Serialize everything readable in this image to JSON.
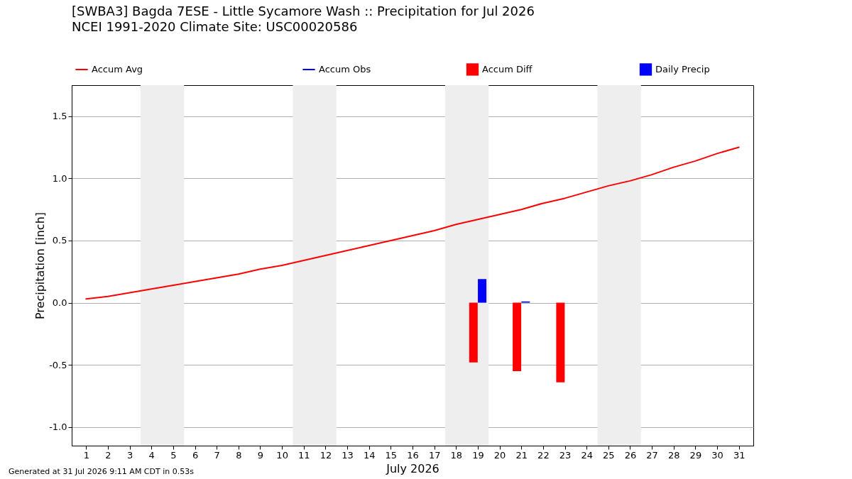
{
  "chart_data": {
    "type": "bar",
    "title": "[SWBA3] Bagda 7ESE - Little Sycamore Wash :: Precipitation for Jul 2026",
    "subtitle": "NCEI 1991-2020 Climate Site: USC00020586",
    "xlabel": "July 2026",
    "ylabel": "Precipitation [inch]",
    "x": [
      1,
      2,
      3,
      4,
      5,
      6,
      7,
      8,
      9,
      10,
      11,
      12,
      13,
      14,
      15,
      16,
      17,
      18,
      19,
      20,
      21,
      22,
      23,
      24,
      25,
      26,
      27,
      28,
      29,
      30,
      31
    ],
    "series": [
      {
        "name": "Accum Avg",
        "type": "line",
        "color": "#ff0000",
        "values": [
          0.03,
          0.05,
          0.08,
          0.11,
          0.14,
          0.17,
          0.2,
          0.23,
          0.27,
          0.3,
          0.34,
          0.38,
          0.42,
          0.46,
          0.5,
          0.54,
          0.58,
          0.63,
          0.67,
          0.71,
          0.75,
          0.8,
          0.84,
          0.89,
          0.94,
          0.98,
          1.03,
          1.09,
          1.14,
          1.2,
          1.25
        ]
      },
      {
        "name": "Accum Obs",
        "type": "line",
        "color": "#0000ff",
        "values": [
          null,
          null,
          null,
          null,
          null,
          null,
          null,
          null,
          null,
          null,
          null,
          null,
          null,
          null,
          null,
          null,
          null,
          null,
          null,
          null,
          null,
          null,
          null,
          null,
          null,
          null,
          null,
          null,
          null,
          null,
          null
        ]
      },
      {
        "name": "Accum Diff",
        "color": "#ff0000",
        "x": [
          18.8,
          20.8,
          22.8
        ],
        "values": [
          -0.48,
          -0.55,
          -0.64
        ]
      },
      {
        "name": "Daily Precip",
        "color": "#0000ff",
        "x": [
          19.2,
          21.2
        ],
        "values": [
          0.19,
          0.01
        ]
      }
    ],
    "xlim": [
      0.5,
      31.5
    ],
    "xticks": [
      1,
      2,
      3,
      4,
      5,
      6,
      7,
      8,
      9,
      10,
      11,
      12,
      13,
      14,
      15,
      16,
      17,
      18,
      19,
      20,
      21,
      22,
      23,
      24,
      25,
      26,
      27,
      28,
      29,
      30,
      31
    ],
    "ylim": [
      -1.15,
      1.75
    ],
    "yticks": [
      {
        "value": -1,
        "label": "-1.0"
      },
      {
        "value": -0.5,
        "label": "-0.5"
      },
      {
        "value": 0,
        "label": "0.0"
      },
      {
        "value": 0.5,
        "label": "0.5"
      },
      {
        "value": 1,
        "label": "1.0"
      },
      {
        "value": 1.5,
        "label": "1.5"
      }
    ],
    "grid": "y",
    "legend": "top",
    "bands": [
      {
        "axis": "x",
        "from": 3.5,
        "to": 5.5,
        "color": "#eeeeee"
      },
      {
        "axis": "x",
        "from": 10.5,
        "to": 12.5,
        "color": "#eeeeee"
      },
      {
        "axis": "x",
        "from": 17.5,
        "to": 19.5,
        "color": "#eeeeee"
      },
      {
        "axis": "x",
        "from": 24.5,
        "to": 26.5,
        "color": "#eeeeee"
      }
    ],
    "annotations": [
      "Generated at 31 Jul 2026 9:11 AM CDT in 0.53s"
    ]
  }
}
